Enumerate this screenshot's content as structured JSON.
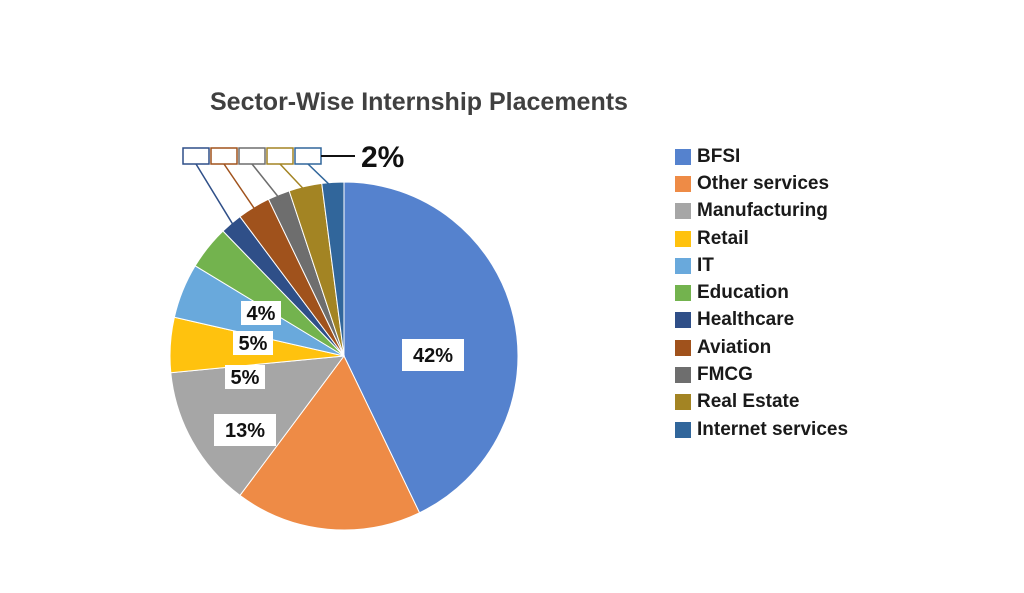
{
  "chart_data": {
    "type": "pie",
    "title": "Sector-Wise Internship Placements",
    "categories": [
      "BFSI",
      "Other services",
      "Manufacturing",
      "Retail",
      "IT",
      "Education",
      "Healthcare",
      "Aviation",
      "FMCG",
      "Real Estate",
      "Internet services"
    ],
    "values": [
      42,
      17,
      13,
      5,
      5,
      4,
      2,
      3,
      2,
      3,
      2
    ],
    "colors": [
      "#5582CE",
      "#EE8B46",
      "#A6A6A6",
      "#FFC20E",
      "#69A9DC",
      "#73B34E",
      "#2F4F88",
      "#A0521C",
      "#6E6E6E",
      "#A38423",
      "#31669B"
    ],
    "data_labels": [
      {
        "category": "BFSI",
        "text": "42%"
      },
      {
        "category": "Manufacturing",
        "text": "13%"
      },
      {
        "category": "Retail",
        "text": "5%"
      },
      {
        "category": "IT",
        "text": "5%"
      },
      {
        "category": "Education",
        "text": "4%"
      },
      {
        "category": "Internet services",
        "text": "2%"
      }
    ],
    "legend_position": "right"
  }
}
